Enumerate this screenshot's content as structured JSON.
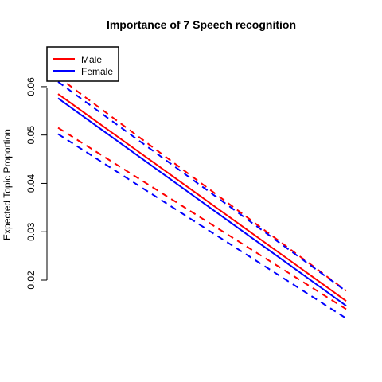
{
  "chart_data": {
    "type": "line",
    "title": "Importance of 7 Speech recognition",
    "xlabel": "",
    "ylabel": "Expected Topic Proportion",
    "x": [
      0,
      1
    ],
    "xlim": [
      0,
      1
    ],
    "ylim": [
      0.02,
      0.0613
    ],
    "y_ticks": [
      {
        "value": 0.02,
        "label": "0.02"
      },
      {
        "value": 0.03,
        "label": "0.03"
      },
      {
        "value": 0.04,
        "label": "0.04"
      },
      {
        "value": 0.05,
        "label": "0.05"
      },
      {
        "value": 0.06,
        "label": "0.06"
      }
    ],
    "grid": false,
    "legend_position": "top-left",
    "series": [
      {
        "name": "Male",
        "color": "#ff0000",
        "estimate": [
          0.0585,
          0.0157
        ],
        "ci_lower": [
          0.0515,
          0.014
        ],
        "ci_upper": [
          0.062,
          0.0178
        ]
      },
      {
        "name": "Female",
        "color": "#0000ff",
        "estimate": [
          0.0576,
          0.0147
        ],
        "ci_lower": [
          0.0502,
          0.0121
        ],
        "ci_upper": [
          0.061,
          0.0177
        ]
      }
    ]
  }
}
